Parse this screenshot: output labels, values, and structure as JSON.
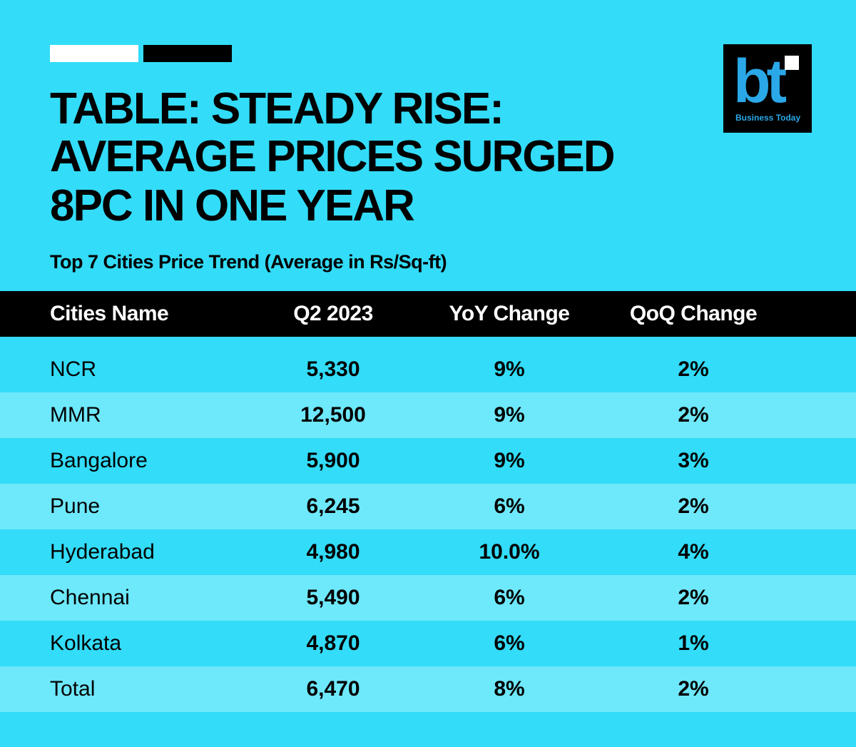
{
  "header": {
    "title_lines": [
      "TABLE: STEADY RISE:",
      "AVERAGE PRICES SURGED",
      "8PC IN ONE YEAR"
    ],
    "subtitle": "Top 7 Cities Price Trend (Average in Rs/Sq-ft)"
  },
  "logo": {
    "mark": "bt",
    "name": "Business Today"
  },
  "table": {
    "columns": [
      "Cities Name",
      "Q2 2023",
      "YoY Change",
      "QoQ Change"
    ],
    "rows": [
      [
        "NCR",
        "5,330",
        "9%",
        "2%"
      ],
      [
        "MMR",
        "12,500",
        "9%",
        "2%"
      ],
      [
        "Bangalore",
        "5,900",
        "9%",
        "3%"
      ],
      [
        "Pune",
        "6,245",
        "6%",
        "2%"
      ],
      [
        "Hyderabad",
        "4,980",
        "10.0%",
        "4%"
      ],
      [
        "Chennai",
        "5,490",
        "6%",
        "2%"
      ],
      [
        "Kolkata",
        "4,870",
        "6%",
        "1%"
      ],
      [
        "Total",
        "6,470",
        "8%",
        "2%"
      ]
    ]
  }
}
